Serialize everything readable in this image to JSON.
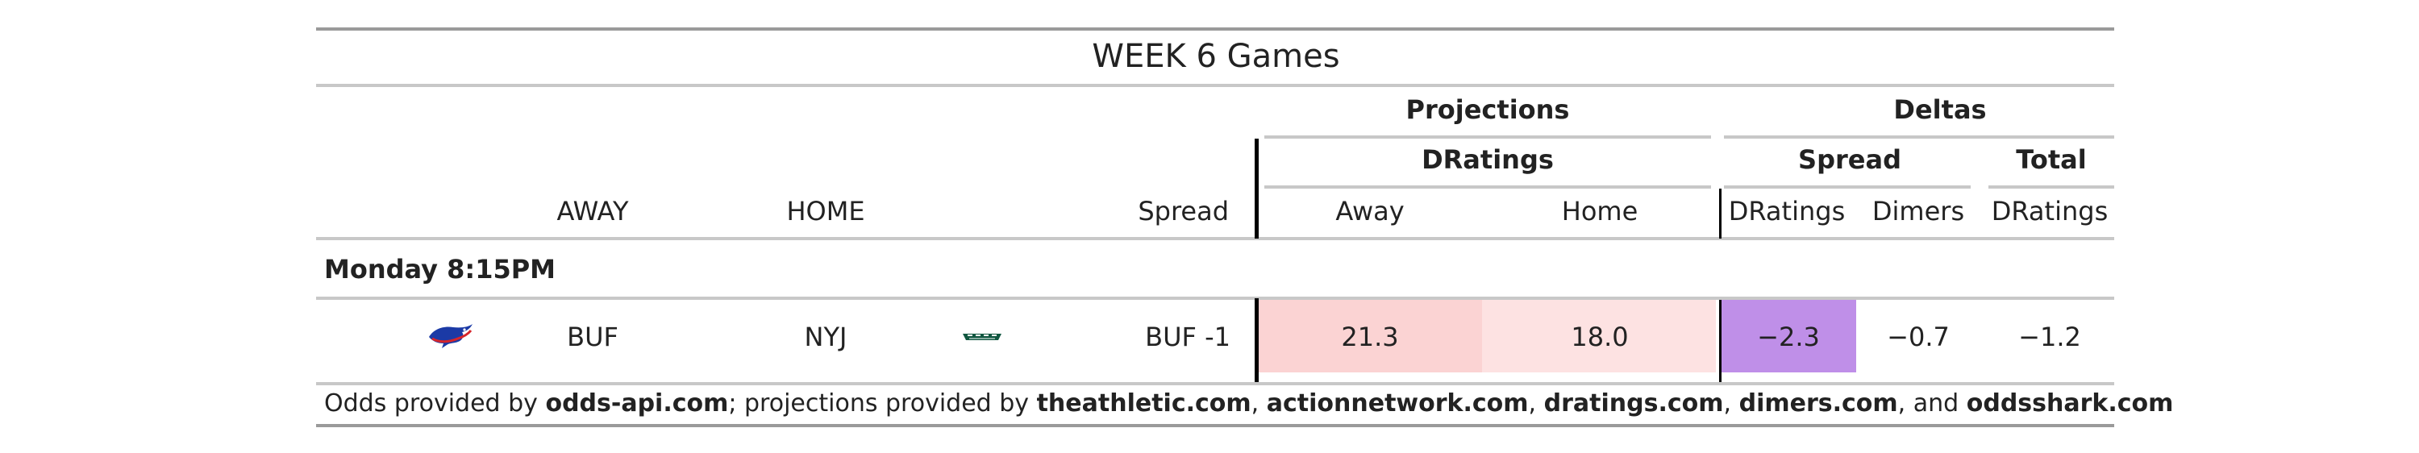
{
  "table": {
    "title": "WEEK 6 Games",
    "spanners": {
      "projections": "Projections",
      "deltas": "Deltas",
      "dratings": "DRatings",
      "spread": "Spread",
      "total": "Total"
    },
    "columns": {
      "away": "AWAY",
      "home": "HOME",
      "spread": "Spread",
      "proj_away": "Away",
      "proj_home": "Home",
      "delta_spread_dratings": "DRatings",
      "delta_spread_dimers": "Dimers",
      "delta_total_dratings": "DRatings"
    },
    "group_label": "Monday 8:15PM",
    "row": {
      "away_logo_icon": "buffalo-bills-logo-icon",
      "away": "BUF",
      "home": "NYJ",
      "home_logo_icon": "new-york-jets-logo-icon",
      "spread": "BUF -1",
      "proj_away": "21.3",
      "proj_home": "18.0",
      "delta_spread_dratings": "−2.3",
      "delta_spread_dimers": "−0.7",
      "delta_total_dratings": "−1.2"
    },
    "footer": {
      "t1": "Odds provided by ",
      "s1": "odds-api.com",
      "t2": "; projections provided by ",
      "s2": "theathletic.com",
      "t3": ", ",
      "s3": "actionnetwork.com",
      "t4": ", ",
      "s4": "dratings.com",
      "t5": ", ",
      "s5": "dimers.com",
      "t6": ", and ",
      "s6": "oddsshark.com"
    },
    "colors": {
      "proj_away_fill": "#fbd3d3",
      "proj_home_fill": "#fde2e2",
      "delta_spread_dratings_fill": "#bf8fe8",
      "bills_blue": "#1b3aa6",
      "bills_red": "#d6252b",
      "jets_green": "#115740"
    }
  }
}
